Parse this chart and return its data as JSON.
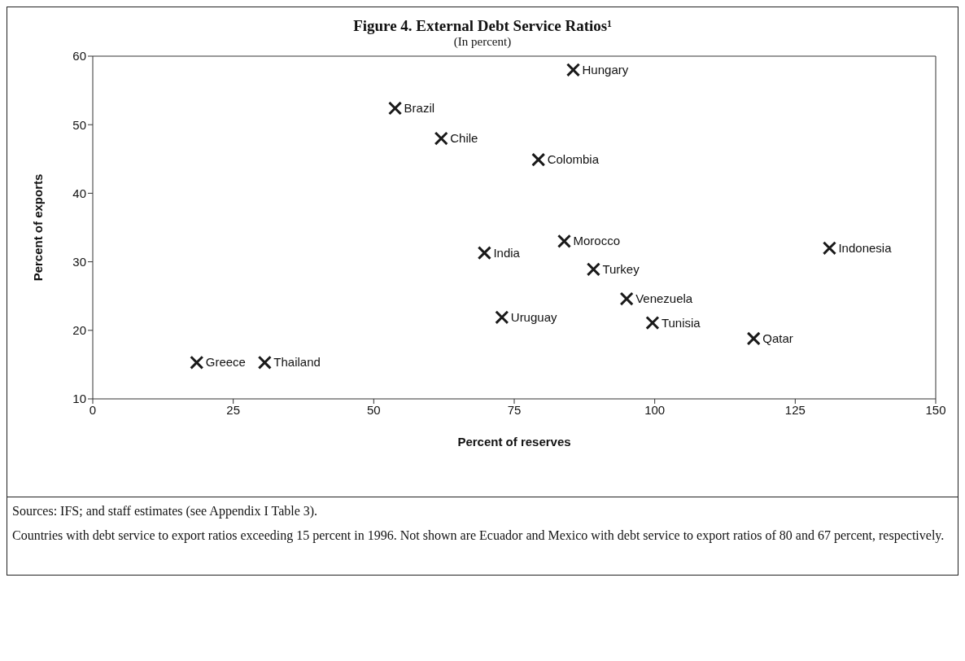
{
  "chart_data": {
    "type": "scatter",
    "title": "Figure 4. External Debt Service Ratios¹",
    "subtitle": "(In percent)",
    "xlabel": "Percent of reserves",
    "ylabel": "Percent of exports",
    "xlim": [
      0,
      150
    ],
    "xticks": [
      0,
      25,
      50,
      75,
      100,
      125,
      150
    ],
    "ylim": [
      10,
      60
    ],
    "yticks": [
      10,
      20,
      30,
      40,
      50,
      60
    ],
    "grid": false,
    "legend": false,
    "marker": "cross",
    "series": [
      {
        "name": "Hungary",
        "color": "#1a1a1a",
        "x": [
          85.5
        ],
        "values": [
          58
        ]
      },
      {
        "name": "Brazil",
        "color": "#1a1a1a",
        "x": [
          53.8
        ],
        "values": [
          52.4
        ]
      },
      {
        "name": "Chile",
        "color": "#1a1a1a",
        "x": [
          62
        ],
        "values": [
          48
        ]
      },
      {
        "name": "Colombia",
        "color": "#1a1a1a",
        "x": [
          79.3
        ],
        "values": [
          44.9
        ]
      },
      {
        "name": "Indonesia",
        "color": "#1a1a1a",
        "x": [
          131.1
        ],
        "values": [
          32
        ]
      },
      {
        "name": "India",
        "color": "#1a1a1a",
        "x": [
          69.7
        ],
        "values": [
          31.3
        ]
      },
      {
        "name": "Morocco",
        "color": "#1a1a1a",
        "x": [
          83.9
        ],
        "values": [
          33
        ]
      },
      {
        "name": "Turkey",
        "color": "#1a1a1a",
        "x": [
          89.1
        ],
        "values": [
          28.9
        ]
      },
      {
        "name": "Venezuela",
        "color": "#1a1a1a",
        "x": [
          95
        ],
        "values": [
          24.6
        ]
      },
      {
        "name": "Uruguay",
        "color": "#1a1a1a",
        "x": [
          72.8
        ],
        "values": [
          21.9
        ]
      },
      {
        "name": "Tunisia",
        "color": "#1a1a1a",
        "x": [
          99.6
        ],
        "values": [
          21.1
        ]
      },
      {
        "name": "Qatar",
        "color": "#1a1a1a",
        "x": [
          117.6
        ],
        "values": [
          18.8
        ]
      },
      {
        "name": "Greece",
        "color": "#1a1a1a",
        "x": [
          18.5
        ],
        "values": [
          15.3
        ]
      },
      {
        "name": "Thailand",
        "color": "#1a1a1a",
        "x": [
          30.6
        ],
        "values": [
          15.3
        ]
      }
    ],
    "annotations": [
      "Sources: IFS; and staff estimates (see Appendix I Table 3).",
      "Countries with debt service to export ratios exceeding 15 percent in 1996. Not shown are Ecuador and Mexico with debt service to export ratios of 80 and 67 percent, respectively."
    ]
  }
}
